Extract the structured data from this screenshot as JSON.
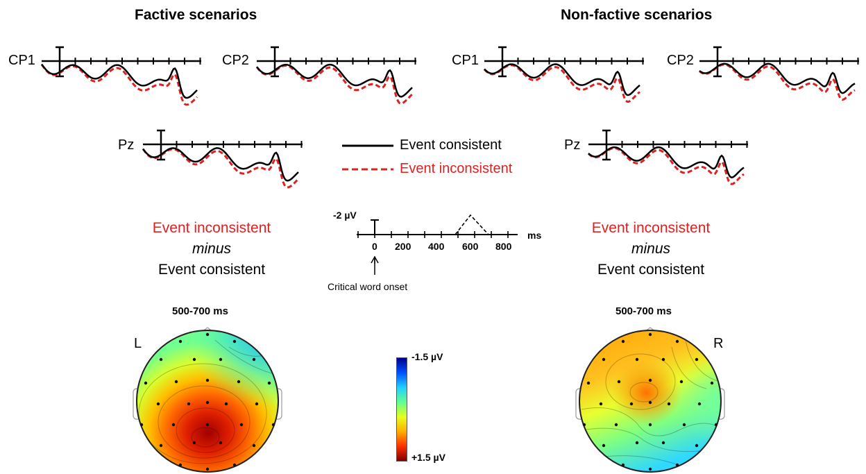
{
  "panels": {
    "factive": {
      "title": "Factive scenarios"
    },
    "nonfactive": {
      "title": "Non-factive scenarios"
    }
  },
  "channels": [
    "CP1",
    "CP2",
    "Pz"
  ],
  "legend": {
    "consistent": "Event consistent",
    "inconsistent": "Event inconsistent",
    "consistent_color": "#000000",
    "inconsistent_color": "#e02020"
  },
  "difference": {
    "line1": "Event inconsistent",
    "line2": "minus",
    "line3": "Event consistent"
  },
  "scale": {
    "amplitude": "-2 µV",
    "unit": "ms",
    "ticks": [
      "0",
      "200",
      "400",
      "600",
      "800"
    ],
    "onset_label": "Critical word onset"
  },
  "topomaps": {
    "window": "500-700",
    "window_unit": "ms",
    "left_marker": "L",
    "right_marker": "R"
  },
  "colorbar": {
    "min_label": "-1.5 µV",
    "max_label": "+1.5 µV",
    "colors": [
      "#00008f",
      "#0050ff",
      "#20d0ff",
      "#60ff90",
      "#e8ff20",
      "#ffb000",
      "#ff3000",
      "#800000"
    ]
  }
}
